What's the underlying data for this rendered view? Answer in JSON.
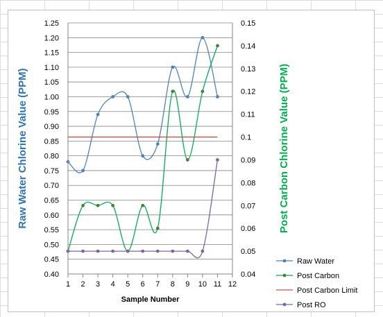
{
  "chart_data": {
    "type": "line",
    "xlabel": "Sample Number",
    "ylabel": "Raw Water Chlorine Value (PPM)",
    "y2label": "Post Carbon Chlorine Value (PPM)",
    "x": [
      1,
      2,
      3,
      4,
      5,
      6,
      7,
      8,
      9,
      10,
      11
    ],
    "xlim": [
      1,
      12
    ],
    "xticks": [
      "1",
      "2",
      "3",
      "4",
      "5",
      "6",
      "7",
      "8",
      "9",
      "10",
      "11",
      "12"
    ],
    "ylim": [
      0.4,
      1.25
    ],
    "yticks": [
      "0.40",
      "0.45",
      "0.50",
      "0.55",
      "0.60",
      "0.65",
      "0.70",
      "0.75",
      "0.80",
      "0.85",
      "0.90",
      "0.95",
      "1.00",
      "1.05",
      "1.10",
      "1.15",
      "1.20",
      "1.25"
    ],
    "y2lim": [
      0.04,
      0.15
    ],
    "y2ticks": [
      "0.04",
      "0.05",
      "0.06",
      "0.07",
      "0.08",
      "0.09",
      "0.1",
      "0.11",
      "0.12",
      "0.13",
      "0.14",
      "0.15"
    ],
    "grid": true,
    "legend_position": "bottom-right",
    "series": [
      {
        "name": "Raw Water",
        "axis": "left",
        "smooth": true,
        "markers": true,
        "color": "#4f81bd",
        "values": [
          0.78,
          0.75,
          0.94,
          1.0,
          1.0,
          0.8,
          0.84,
          1.1,
          1.0,
          1.2,
          1.0
        ]
      },
      {
        "name": "Post Carbon",
        "axis": "right",
        "smooth": true,
        "markers": true,
        "color": "#00b050",
        "marker_color": "#4e7e3b",
        "values": [
          0.05,
          0.07,
          0.07,
          0.07,
          0.05,
          0.07,
          0.06,
          0.12,
          0.09,
          0.12,
          0.14
        ]
      },
      {
        "name": "Post Carbon Limit",
        "axis": "right",
        "smooth": false,
        "markers": false,
        "color": "#c0504d",
        "values": [
          0.1,
          0.1,
          0.1,
          0.1,
          0.1,
          0.1,
          0.1,
          0.1,
          0.1,
          0.1,
          0.1
        ]
      },
      {
        "name": "Post RO",
        "axis": "right",
        "smooth": true,
        "markers": true,
        "color": "#8064a2",
        "values": [
          0.05,
          0.05,
          0.05,
          0.05,
          0.05,
          0.05,
          0.05,
          0.05,
          0.05,
          0.05,
          0.09
        ]
      }
    ]
  }
}
